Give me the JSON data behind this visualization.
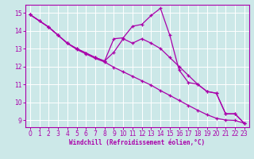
{
  "xlabel": "Windchill (Refroidissement éolien,°C)",
  "bg_color": "#cce8e8",
  "grid_color": "#aad8d8",
  "line_color": "#aa00aa",
  "xlim_min": -0.5,
  "xlim_max": 23.5,
  "ylim_min": 8.6,
  "ylim_max": 15.45,
  "yticks": [
    9,
    10,
    11,
    12,
    13,
    14,
    15
  ],
  "xticks": [
    0,
    1,
    2,
    3,
    4,
    5,
    6,
    7,
    8,
    9,
    10,
    11,
    12,
    13,
    14,
    15,
    16,
    17,
    18,
    19,
    20,
    21,
    22,
    23
  ],
  "line1_x": [
    0,
    1,
    2,
    3,
    4,
    5,
    6,
    7,
    8,
    9,
    10,
    11,
    12,
    13,
    14,
    15,
    16,
    17,
    18,
    19,
    20,
    21,
    22,
    23
  ],
  "line1_y": [
    14.9,
    14.55,
    14.2,
    13.75,
    13.3,
    12.95,
    12.7,
    12.45,
    12.25,
    11.95,
    11.7,
    11.45,
    11.2,
    10.95,
    10.65,
    10.38,
    10.1,
    9.82,
    9.55,
    9.3,
    9.1,
    9.0,
    8.98,
    8.82
  ],
  "line2_x": [
    0,
    1,
    2,
    3,
    4,
    5,
    6,
    7,
    8,
    9,
    10,
    11,
    12,
    13,
    14,
    15,
    16,
    17,
    18,
    19,
    20,
    21,
    22,
    23
  ],
  "line2_y": [
    14.9,
    14.55,
    14.2,
    13.75,
    13.3,
    13.0,
    12.75,
    12.5,
    12.3,
    13.55,
    13.6,
    14.25,
    14.35,
    14.85,
    15.25,
    13.75,
    11.8,
    11.1,
    11.0,
    10.6,
    10.5,
    9.35,
    9.35,
    8.82
  ],
  "line3_x": [
    0,
    2,
    3,
    4,
    5,
    6,
    7,
    8,
    9,
    10,
    11,
    12,
    13,
    14,
    15,
    16,
    17,
    18,
    19,
    20,
    21,
    22,
    23
  ],
  "line3_y": [
    14.9,
    14.2,
    13.75,
    13.3,
    13.0,
    12.75,
    12.5,
    12.3,
    12.8,
    13.55,
    13.3,
    13.55,
    13.3,
    13.0,
    12.5,
    12.0,
    11.5,
    11.0,
    10.6,
    10.5,
    9.35,
    9.35,
    8.82
  ]
}
